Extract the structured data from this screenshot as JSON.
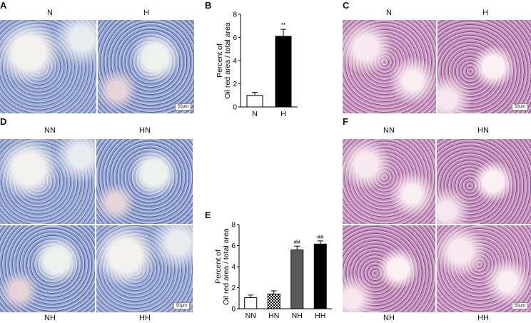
{
  "panels": {
    "A": {
      "label": "A",
      "col_left": "N",
      "col_right": "H",
      "scale": "50μm"
    },
    "B": {
      "label": "B"
    },
    "C": {
      "label": "C",
      "col_left": "N",
      "col_right": "H",
      "scale": "50μm"
    },
    "D": {
      "label": "D",
      "top_left": "NN",
      "top_right": "HN",
      "bottom_left": "NH",
      "bottom_right": "HH",
      "scale": "50μm"
    },
    "E": {
      "label": "E"
    },
    "F": {
      "label": "F",
      "top_left": "NN",
      "top_right": "HN",
      "bottom_left": "NH",
      "bottom_right": "HH",
      "scale": "50μm"
    }
  },
  "chart_data": [
    {
      "type": "bar",
      "panel": "B",
      "categories": [
        "N",
        "H"
      ],
      "values": [
        1.0,
        6.1
      ],
      "errors": [
        0.25,
        0.6
      ],
      "annotations": [
        "",
        "**"
      ],
      "fills": [
        "#ffffff",
        "#000000"
      ],
      "ylabel_line1": "Percent of",
      "ylabel_line2": "Oil red  area / total area",
      "ylim": [
        0,
        8
      ],
      "yticks": [
        "0",
        "2",
        "4",
        "6",
        "8"
      ]
    },
    {
      "type": "bar",
      "panel": "E",
      "categories": [
        "NN",
        "HN",
        "NH",
        "HH"
      ],
      "values": [
        1.05,
        1.4,
        5.6,
        6.15
      ],
      "errors": [
        0.25,
        0.3,
        0.35,
        0.3
      ],
      "annotations": [
        "",
        "",
        "##",
        "##"
      ],
      "fills": [
        "#ffffff",
        "checker",
        "#595959",
        "#000000"
      ],
      "ylabel_line1": "Percent of",
      "ylabel_line2": "Oil red  area / total area",
      "ylim": [
        0,
        8
      ],
      "yticks": [
        "0",
        "2",
        "4",
        "6",
        "8"
      ]
    }
  ]
}
